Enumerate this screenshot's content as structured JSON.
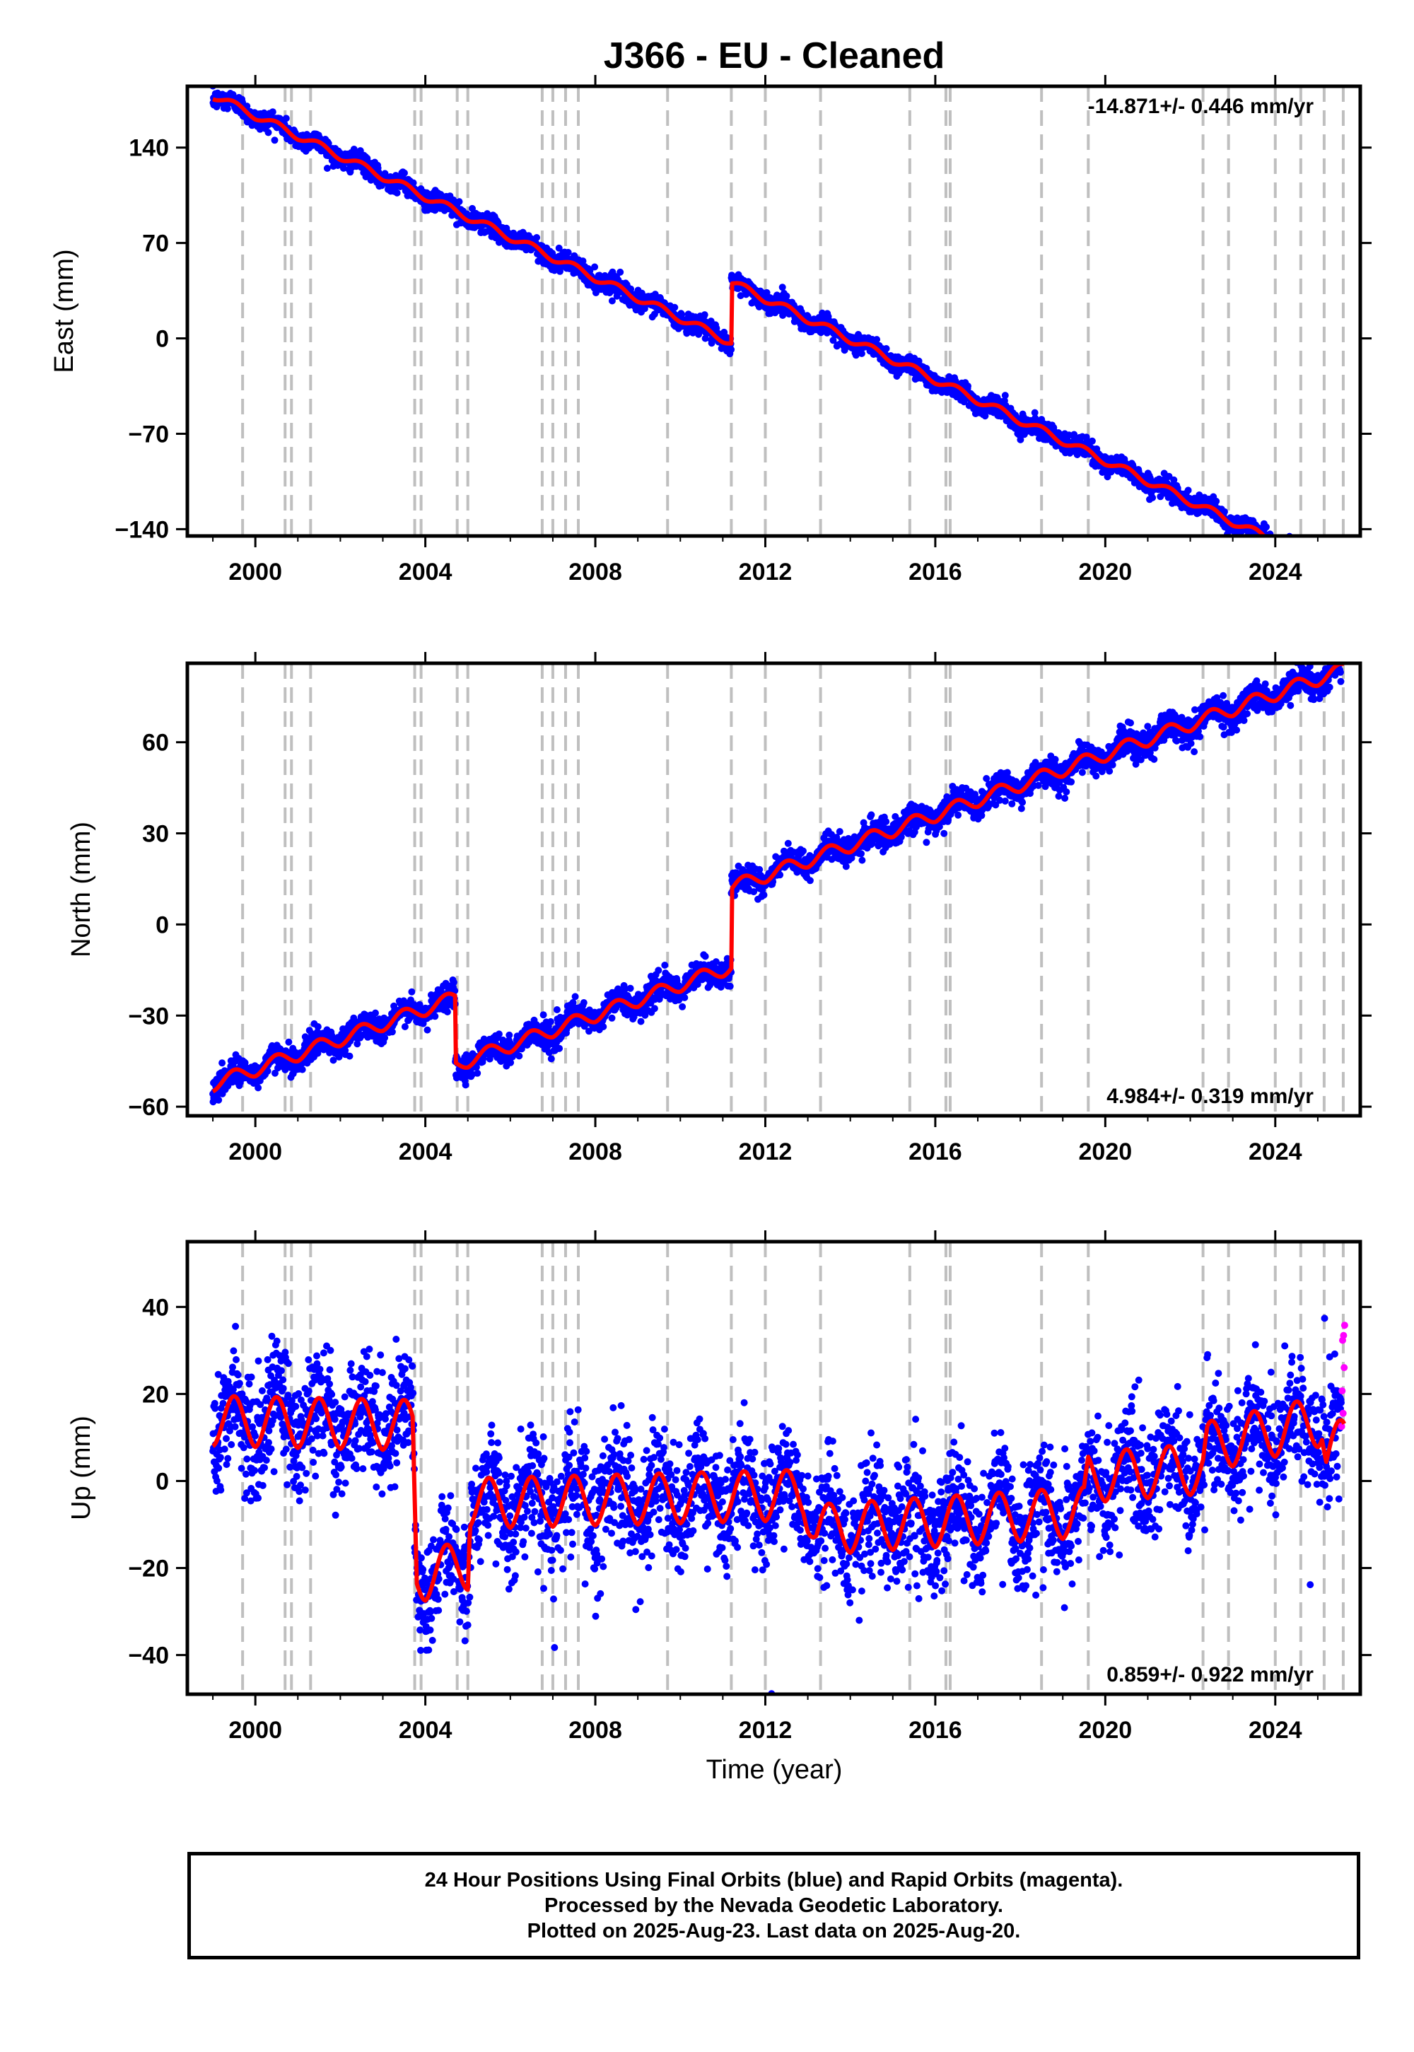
{
  "chart_data": {
    "title": "J366  - EU - Cleaned",
    "xlabel": "Time (year)",
    "x_ticks": [
      "2000",
      "2004",
      "2008",
      "2012",
      "2016",
      "2020",
      "2024"
    ],
    "xlim": [
      1998.4,
      2026.0
    ],
    "equipment_change_years": [
      1999.7,
      2000.7,
      2000.85,
      2001.3,
      2003.75,
      2003.9,
      2004.75,
      2005.0,
      2006.75,
      2007.0,
      2007.3,
      2007.6,
      2009.7,
      2011.2,
      2012.0,
      2013.3,
      2015.4,
      2016.25,
      2016.35,
      2018.5,
      2019.6,
      2022.3,
      2022.9,
      2024.0,
      2024.6,
      2025.15,
      2025.6
    ],
    "colors": {
      "final_orbits": "#0000ff",
      "rapid_orbits": "#ff00ff",
      "model": "#ff0000",
      "grid": "#bfbfbf"
    },
    "panels": [
      {
        "name": "east",
        "type": "scatter",
        "ylabel": "East (mm)",
        "ylim": [
          -145,
          185
        ],
        "y_ticks": [
          "140",
          "70",
          "0",
          "−70",
          "−140"
        ],
        "y_tick_values": [
          140,
          70,
          0,
          -70,
          -140
        ],
        "rate_text": "-14.871+/- 0.446 mm/yr",
        "rate_position": "top-right",
        "model": {
          "rate": -14.871,
          "offsets": [
            {
              "year": 2011.2,
              "jump": 44
            }
          ],
          "anchor": [
            1999.0,
            178
          ],
          "annual_amp": 2.5,
          "noise": 3.5
        }
      },
      {
        "name": "north",
        "type": "scatter",
        "ylabel": "North (mm)",
        "ylim": [
          -63,
          86
        ],
        "y_ticks": [
          "60",
          "30",
          "0",
          "−30",
          "−60"
        ],
        "y_tick_values": [
          60,
          30,
          0,
          -30,
          -60
        ],
        "rate_text": "4.984+/- 0.319 mm/yr",
        "rate_position": "bottom-right",
        "model": {
          "rate": 4.984,
          "offsets": [
            {
              "year": 2004.7,
              "jump": -22
            },
            {
              "year": 2011.2,
              "jump": 26
            }
          ],
          "anchor": [
            1999.0,
            -53
          ],
          "annual_amp": 2.0,
          "noise": 2.2
        }
      },
      {
        "name": "up",
        "type": "scatter",
        "ylabel": "Up (mm)",
        "ylim": [
          -49,
          55
        ],
        "y_ticks": [
          "40",
          "20",
          "0",
          "−20",
          "−40"
        ],
        "y_tick_values": [
          40,
          20,
          0,
          -20,
          -40
        ],
        "rate_text": "0.859+/- 0.922 mm/yr",
        "rate_position": "bottom-right",
        "model": {
          "rate": 0.859,
          "anchor": [
            1999.0,
            13
          ],
          "annual_amp": 5.0,
          "noise": 6.5,
          "segments": [
            [
              1999.0,
              13
            ],
            [
              2003.7,
              12
            ],
            [
              2003.8,
              -23
            ],
            [
              2005.0,
              -20
            ],
            [
              2005.05,
              -6
            ],
            [
              2012.9,
              -4
            ],
            [
              2013.2,
              -12
            ],
            [
              2019.5,
              -8
            ],
            [
              2019.6,
              0
            ],
            [
              2022.3,
              2
            ],
            [
              2022.4,
              7
            ],
            [
              2025.1,
              13
            ],
            [
              2025.2,
              5
            ],
            [
              2025.6,
              8
            ]
          ]
        }
      }
    ],
    "footnote": [
      "24 Hour Positions Using Final Orbits (blue) and Rapid Orbits (magenta).",
      "Processed by the Nevada Geodetic Laboratory.",
      "Plotted on 2025-Aug-23. Last data on 2025-Aug-20."
    ]
  }
}
